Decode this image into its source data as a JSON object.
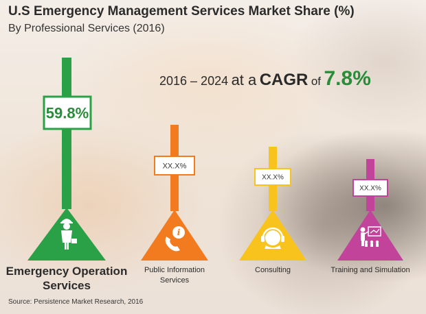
{
  "header": {
    "title": "U.S Emergency Management Services Market Share (%)",
    "subtitle": "By Professional Services (2016)"
  },
  "cagr": {
    "range": "2016 – 2024",
    "at_a": "at a",
    "word": "CAGR",
    "of": "of",
    "value": "7.8%"
  },
  "chart_data": {
    "type": "bar",
    "title": "U.S Emergency Management Services Market Share (%)",
    "subtitle": "By Professional Services (2016)",
    "categories": [
      "Emergency Operation Services",
      "Public Information Services",
      "Consulting",
      "Training and Simulation"
    ],
    "category_lines": [
      [
        "Emergency Operation",
        "Services"
      ],
      [
        "Public Information",
        "Services"
      ],
      [
        "Consulting"
      ],
      [
        "Training and Simulation"
      ]
    ],
    "value_labels": [
      "59.8%",
      "XX.X%",
      "XX.X%",
      "XX.X%"
    ],
    "values": [
      59.8,
      null,
      null,
      null
    ],
    "colors": [
      "#2aa147",
      "#f27b20",
      "#f7c31c",
      "#c2449a"
    ],
    "icons": [
      "worker-icon",
      "phone-info-icon",
      "headset-icon",
      "presentation-icon"
    ]
  },
  "source": "Source: Persistence Market Research, 2016"
}
